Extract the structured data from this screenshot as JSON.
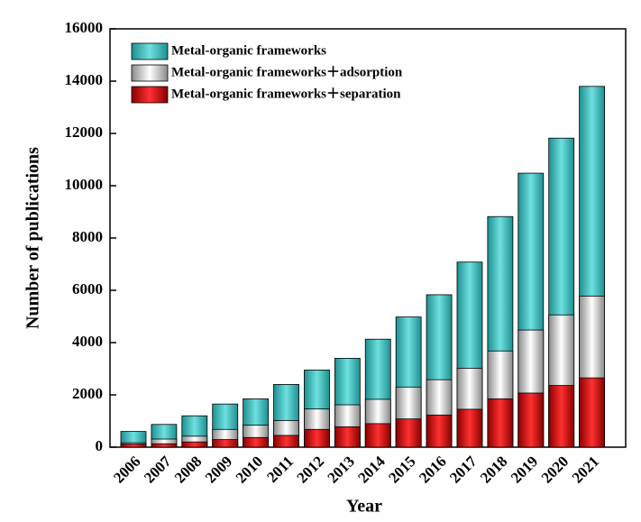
{
  "chart_data": {
    "type": "bar",
    "x_label": "Year",
    "y_label": "Number of publications",
    "categories": [
      "2006",
      "2007",
      "2008",
      "2009",
      "2010",
      "2011",
      "2012",
      "2013",
      "2014",
      "2015",
      "2016",
      "2017",
      "2018",
      "2019",
      "2020",
      "2021"
    ],
    "series": [
      {
        "name": "Metal-organic frameworks",
        "color": "#3cbcbc",
        "values": [
          600,
          870,
          1200,
          1650,
          1850,
          2400,
          2950,
          3400,
          4130,
          4980,
          5830,
          7080,
          8820,
          10480,
          11820,
          13800
        ]
      },
      {
        "name": "Metal-organic frameworks＋adsorption",
        "color": "#ffffff",
        "values": [
          170,
          310,
          420,
          680,
          840,
          1020,
          1460,
          1620,
          1830,
          2300,
          2580,
          3020,
          3680,
          4480,
          5060,
          5780
        ]
      },
      {
        "name": "Metal-organic frameworks＋separation",
        "color": "#e01818",
        "values": [
          120,
          130,
          200,
          290,
          370,
          450,
          680,
          780,
          900,
          1080,
          1230,
          1450,
          1850,
          2070,
          2360,
          2650
        ]
      }
    ],
    "ylim": [
      0,
      16000
    ],
    "yticks": [
      0,
      2000,
      4000,
      6000,
      8000,
      10000,
      12000,
      14000,
      16000
    ],
    "grid": false,
    "legend": "upper left"
  }
}
